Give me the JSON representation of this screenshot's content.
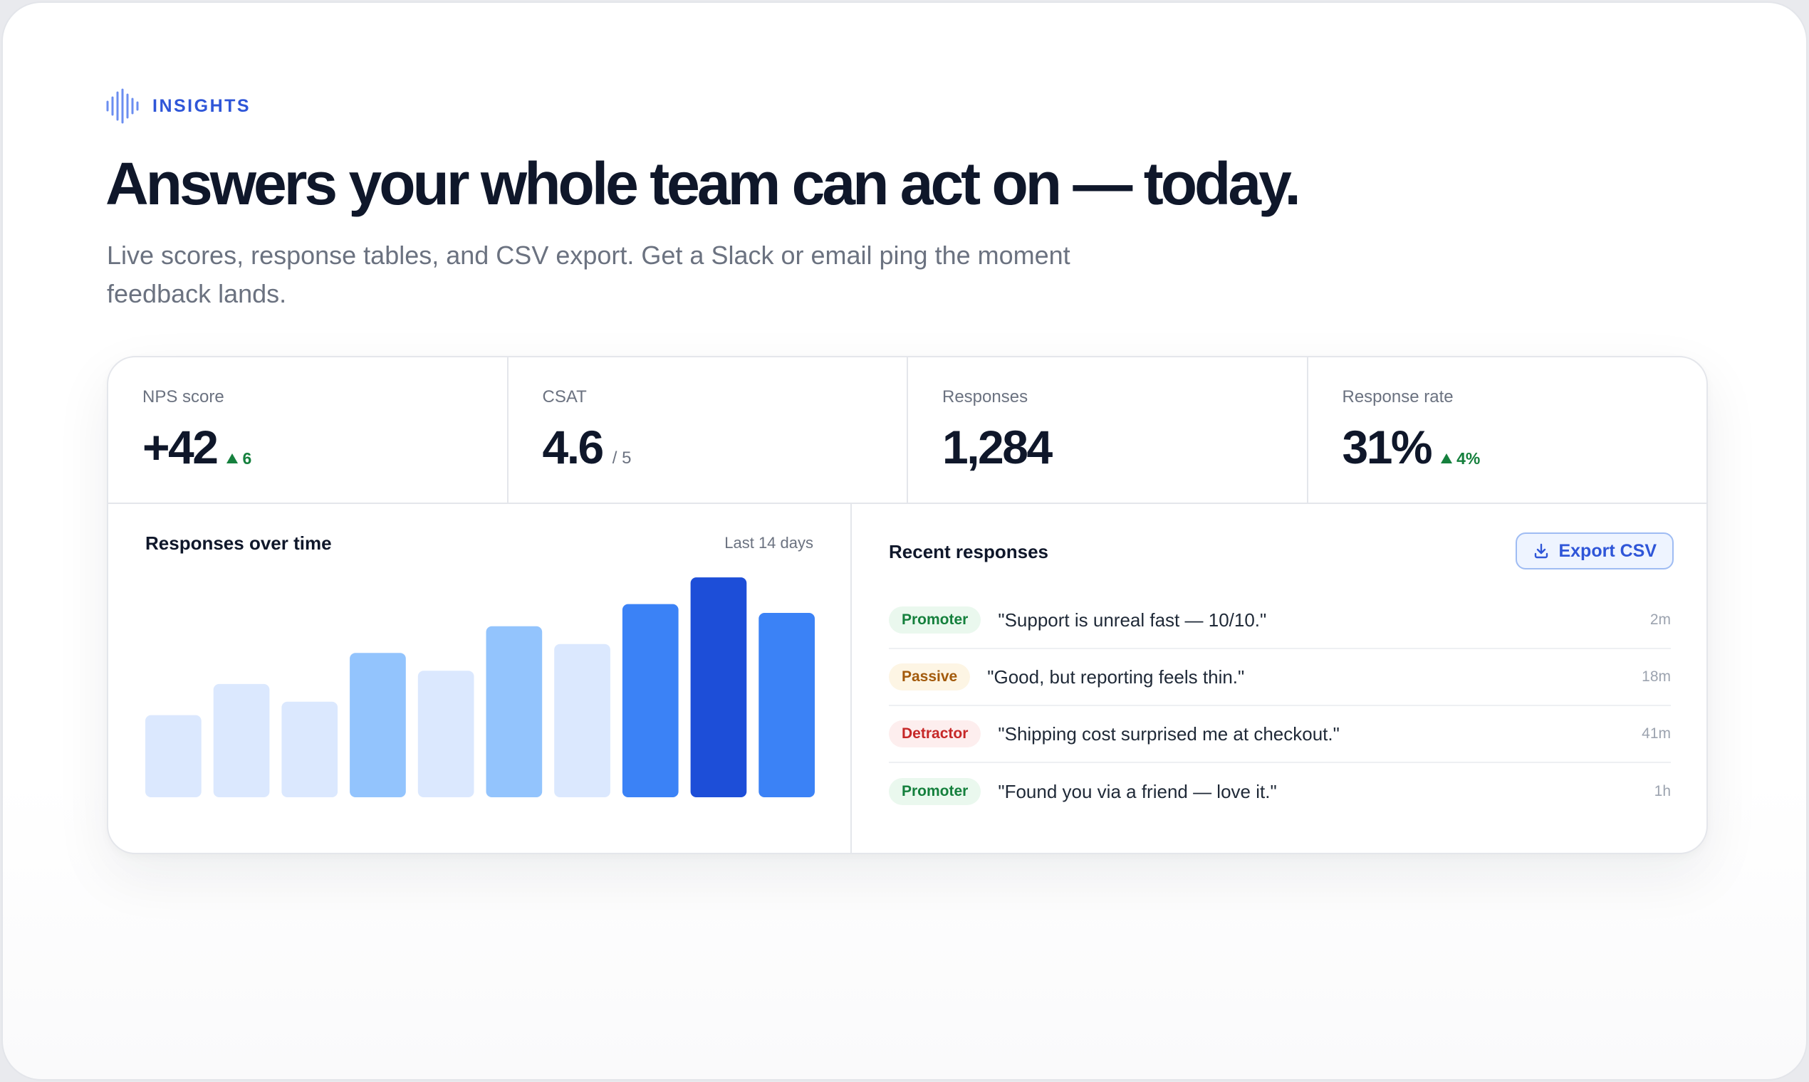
{
  "eyebrow": {
    "label": "INSIGHTS",
    "icon": "waveform-icon",
    "color": "#2f56d8"
  },
  "headline": "Answers your whole team can act on — today.",
  "subhead": "Live scores, response tables, and CSV export. Get a Slack or email ping the moment feedback lands.",
  "stats": [
    {
      "label": "NPS score",
      "value": "+42",
      "delta": "6",
      "delta_direction": "up"
    },
    {
      "label": "CSAT",
      "value": "4.6",
      "suffix": "/ 5"
    },
    {
      "label": "Responses",
      "value": "1,284"
    },
    {
      "label": "Response rate",
      "value": "31%",
      "delta": "4%",
      "delta_direction": "up"
    }
  ],
  "chart": {
    "title": "Responses over time",
    "range_label": "Last 14 days"
  },
  "chart_data": {
    "type": "bar",
    "title": "Responses over time",
    "xlabel": "",
    "ylabel": "",
    "values": [
      37,
      51,
      43,
      65,
      57,
      77,
      69,
      87,
      99,
      83
    ],
    "ylim": [
      0,
      100
    ],
    "bar_colors": [
      "#dbe8fe",
      "#dbe8fe",
      "#dbe8fe",
      "#93c4fd",
      "#dbe8fe",
      "#93c4fd",
      "#dbe8fe",
      "#3b82f6",
      "#1d4ed8",
      "#3b82f6"
    ],
    "grid": false
  },
  "recent": {
    "title": "Recent responses",
    "export_label": "Export CSV",
    "export_icon": "download-icon",
    "items": [
      {
        "badge": "Promoter",
        "kind": "promoter",
        "quote": "\"Support is unreal fast — 10/10.\"",
        "time": "2m"
      },
      {
        "badge": "Passive",
        "kind": "passive",
        "quote": "\"Good, but reporting feels thin.\"",
        "time": "18m"
      },
      {
        "badge": "Detractor",
        "kind": "detractor",
        "quote": "\"Shipping cost surprised me at checkout.\"",
        "time": "41m"
      },
      {
        "badge": "Promoter",
        "kind": "promoter",
        "quote": "\"Found you via a friend — love it.\"",
        "time": "1h"
      }
    ]
  }
}
